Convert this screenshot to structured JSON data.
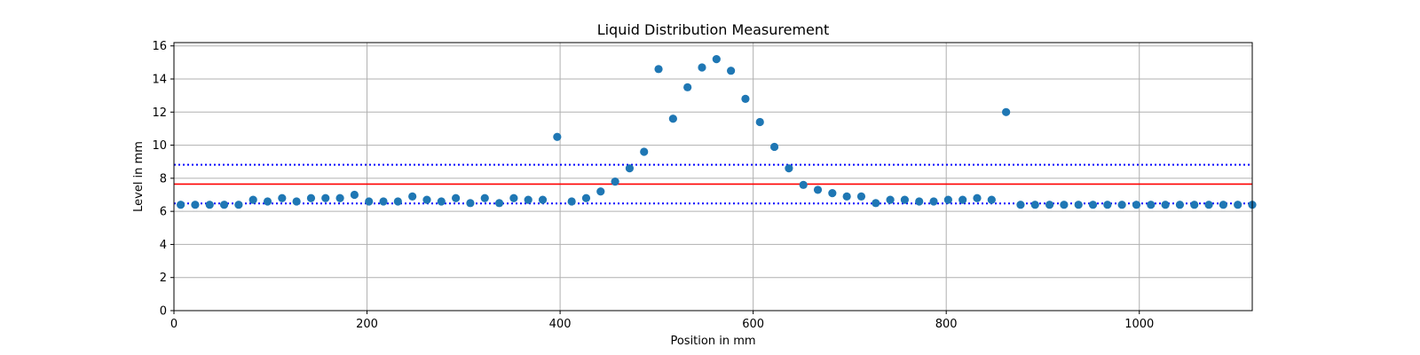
{
  "chart_data": {
    "type": "scatter",
    "title": "Liquid Distribution Measurement",
    "xlabel": "Position in mm",
    "ylabel": "Level in mm",
    "xlim": [
      0,
      1117
    ],
    "ylim": [
      0,
      16.2
    ],
    "xticks": [
      0,
      200,
      400,
      600,
      800,
      1000
    ],
    "yticks": [
      0,
      2,
      4,
      6,
      8,
      10,
      12,
      14,
      16
    ],
    "grid": true,
    "point_color": "#1f77b4",
    "series": [
      {
        "x": [
          7,
          22,
          37,
          52,
          67,
          82,
          97,
          112,
          127,
          142,
          157,
          172,
          187,
          202,
          217,
          232,
          247,
          262,
          277,
          292,
          307,
          322,
          337,
          352,
          367,
          382,
          397,
          412,
          427,
          442,
          457,
          472,
          487,
          502,
          517,
          532,
          547,
          562,
          577,
          592,
          607,
          622,
          637,
          652,
          667,
          682,
          697,
          712,
          727,
          742,
          757,
          772,
          787,
          802,
          817,
          832,
          847,
          862,
          877,
          892,
          907,
          922,
          937,
          952,
          967,
          982,
          997,
          1012,
          1027,
          1042,
          1057,
          1072,
          1087,
          1102,
          1117
        ],
        "y": [
          6.4,
          6.4,
          6.4,
          6.4,
          6.4,
          6.7,
          6.6,
          6.8,
          6.6,
          6.8,
          6.8,
          6.8,
          7.0,
          6.6,
          6.6,
          6.6,
          6.9,
          6.7,
          6.6,
          6.8,
          6.5,
          6.8,
          6.5,
          6.8,
          6.7,
          6.7,
          10.5,
          6.6,
          6.8,
          7.2,
          7.8,
          8.6,
          9.6,
          14.6,
          11.6,
          13.5,
          14.7,
          15.2,
          14.5,
          12.8,
          11.4,
          9.9,
          8.6,
          7.6,
          7.3,
          7.1,
          6.9,
          6.9,
          6.5,
          6.7,
          6.7,
          6.6,
          6.6,
          6.7,
          6.7,
          6.8,
          6.7,
          12.0,
          6.4,
          6.4,
          6.4,
          6.4,
          6.4,
          6.4,
          6.4,
          6.4,
          6.4,
          6.4,
          6.4,
          6.4,
          6.4,
          6.4,
          6.4,
          6.4,
          6.4
        ]
      }
    ],
    "reference_lines": [
      {
        "y": 7.65,
        "color": "#ff0000",
        "style": "solid"
      },
      {
        "y": 8.82,
        "color": "#0000ff",
        "style": "dotted"
      },
      {
        "y": 6.48,
        "color": "#0000ff",
        "style": "dotted"
      }
    ]
  }
}
